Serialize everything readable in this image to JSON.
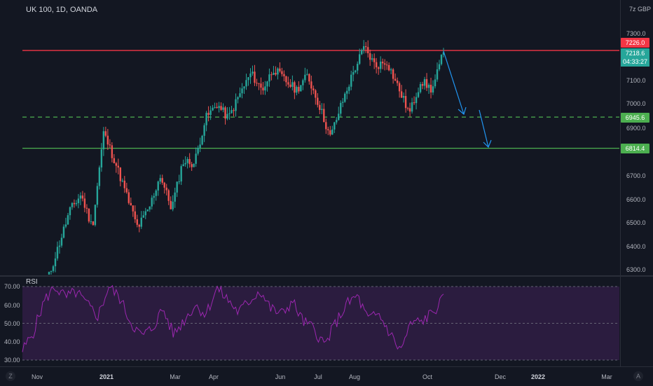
{
  "header": {
    "symbol_title": "UK 100, 1D, OANDA",
    "currency": "GBP",
    "currency_prefix": "7z"
  },
  "price_axis": {
    "ticks": [
      "7300.0",
      "7100.0",
      "7000.0",
      "6900.0",
      "6700.0",
      "6600.0",
      "6500.0",
      "6400.0",
      "6300.0"
    ]
  },
  "price_tags": {
    "resistance": {
      "label": "7226.0",
      "color": "#f23645"
    },
    "last_price": {
      "label": "7218.6",
      "countdown": "04:33:27",
      "color": "#26a69a"
    },
    "support_dashed": {
      "label": "6945.6",
      "color": "#4caf50"
    },
    "support_solid": {
      "label": "6814.4",
      "color": "#4caf50"
    }
  },
  "rsi": {
    "label": "RSI",
    "ticks": [
      "70.00",
      "60.00",
      "50.00",
      "40.00",
      "30.00"
    ],
    "line_color": "#9c27b0",
    "band_color": "#2b1c3f"
  },
  "time_axis": {
    "labels": [
      "Nov",
      "2021",
      "Mar",
      "Apr",
      "Jun",
      "Jul",
      "Aug",
      "Oct",
      "Dec",
      "2022",
      "Mar"
    ]
  },
  "corner": {
    "left": "Z",
    "right": "A"
  },
  "colors": {
    "up": "#26a69a",
    "down": "#ef5350",
    "background": "#131722",
    "arrow": "#2196f3"
  },
  "chart_data": {
    "type": "candlestick",
    "title": "UK 100, 1D, OANDA",
    "levels": [
      {
        "value": 7226.0,
        "style": "solid",
        "color": "#f23645"
      },
      {
        "value": 6945.6,
        "style": "dashed",
        "color": "#4caf50"
      },
      {
        "value": 6814.4,
        "style": "solid",
        "color": "#4caf50"
      }
    ],
    "last_price": 7218.6,
    "price_range": [
      6300,
      7300
    ],
    "rsi_range": [
      30,
      70
    ],
    "rsi_levels": [
      70,
      50,
      30
    ],
    "price_path": [
      [
        "Nov",
        6250
      ],
      [
        "Nov",
        6400
      ],
      [
        "Dec",
        6550
      ],
      [
        "Dec",
        6620
      ],
      [
        "Dec",
        6480
      ],
      [
        "2021",
        6880
      ],
      [
        "2021",
        6760
      ],
      [
        "Feb",
        6620
      ],
      [
        "Feb",
        6480
      ],
      [
        "Feb",
        6560
      ],
      [
        "Mar",
        6700
      ],
      [
        "Mar",
        6560
      ],
      [
        "Mar",
        6760
      ],
      [
        "Apr",
        6750
      ],
      [
        "Apr",
        6940
      ],
      [
        "Apr",
        7000
      ],
      [
        "May",
        6940
      ],
      [
        "May",
        7040
      ],
      [
        "May",
        7130
      ],
      [
        "May",
        7060
      ],
      [
        "Jun",
        7150
      ],
      [
        "Jun",
        7100
      ],
      [
        "Jun",
        7060
      ],
      [
        "Jul",
        7120
      ],
      [
        "Jul",
        7000
      ],
      [
        "Jul",
        6860
      ],
      [
        "Jul",
        7000
      ],
      [
        "Aug",
        7130
      ],
      [
        "Aug",
        7240
      ],
      [
        "Aug",
        7160
      ],
      [
        "Aug",
        7180
      ],
      [
        "Sep",
        7070
      ],
      [
        "Sep",
        6960
      ],
      [
        "Sep",
        7100
      ],
      [
        "Oct",
        7060
      ],
      [
        "Oct",
        7218.6
      ]
    ],
    "rsi_path": [
      [
        "Nov",
        35
      ],
      [
        "Nov",
        45
      ],
      [
        "Nov",
        62
      ],
      [
        "Dec",
        70
      ],
      [
        "Dec",
        64
      ],
      [
        "Dec",
        67
      ],
      [
        "Dec",
        60
      ],
      [
        "2021",
        54
      ],
      [
        "2021",
        70
      ],
      [
        "2021",
        64
      ],
      [
        "Feb",
        51
      ],
      [
        "Feb",
        43
      ],
      [
        "Feb",
        47
      ],
      [
        "Mar",
        58
      ],
      [
        "Mar",
        44
      ],
      [
        "Mar",
        52
      ],
      [
        "Mar",
        60
      ],
      [
        "Apr",
        55
      ],
      [
        "Apr",
        69
      ],
      [
        "Apr",
        63
      ],
      [
        "May",
        56
      ],
      [
        "May",
        62
      ],
      [
        "May",
        68
      ],
      [
        "May",
        58
      ],
      [
        "Jun",
        55
      ],
      [
        "Jun",
        62
      ],
      [
        "Jun",
        51
      ],
      [
        "Jul",
        47
      ],
      [
        "Jul",
        38
      ],
      [
        "Jul",
        50
      ],
      [
        "Aug",
        60
      ],
      [
        "Aug",
        65
      ],
      [
        "Aug",
        52
      ],
      [
        "Aug",
        55
      ],
      [
        "Sep",
        45
      ],
      [
        "Sep",
        35
      ],
      [
        "Sep",
        50
      ],
      [
        "Oct",
        51
      ],
      [
        "Oct",
        56
      ],
      [
        "Oct",
        63
      ]
    ]
  }
}
